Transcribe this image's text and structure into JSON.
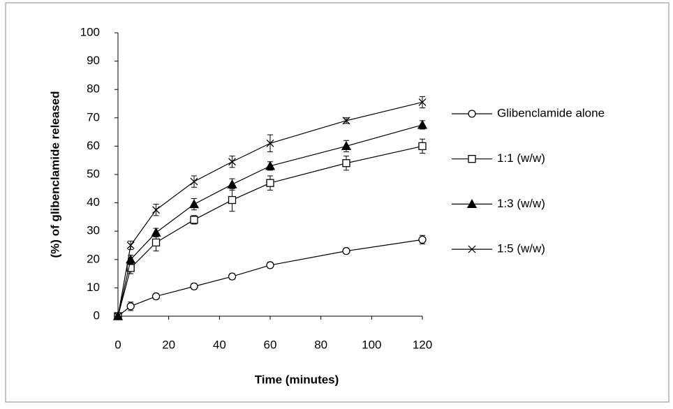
{
  "chart_data": {
    "type": "line",
    "x_label": "Time (minutes)",
    "y_label": "(%) of glibenclamide  released",
    "xlim": [
      0,
      120
    ],
    "xticks": [
      0,
      20,
      40,
      60,
      80,
      100,
      120
    ],
    "ylim": [
      0,
      100
    ],
    "yticks": [
      0,
      10,
      20,
      30,
      40,
      50,
      60,
      70,
      80,
      90,
      100
    ],
    "x": [
      0,
      5,
      15,
      30,
      45,
      60,
      90,
      120
    ],
    "series": [
      {
        "name": "Glibenclamide alone",
        "color": "#000000",
        "marker": "circle",
        "values": [
          0,
          3.5,
          7,
          10.5,
          14,
          18,
          23,
          27
        ],
        "errors": [
          0,
          1.5,
          1,
          1,
          1,
          1,
          1,
          1.5
        ]
      },
      {
        "name": "1:1 (w/w)",
        "color": "#000000",
        "marker": "square",
        "values": [
          0,
          17,
          26,
          34,
          41,
          47,
          54,
          60
        ],
        "errors": [
          0,
          2,
          3,
          1.5,
          4,
          2.5,
          2.5,
          2.5
        ]
      },
      {
        "name": "1:3 (w/w)",
        "color": "#000000",
        "marker": "triangle",
        "values": [
          0,
          20,
          29.5,
          39.5,
          46.5,
          53,
          60,
          67.5
        ],
        "errors": [
          0,
          1.5,
          1.5,
          2,
          2,
          1.5,
          2,
          1.5
        ]
      },
      {
        "name": "1:5 (w/w)",
        "color": "#000000",
        "marker": "x",
        "values": [
          0,
          25,
          37.5,
          47.5,
          54.5,
          61,
          69,
          75.5
        ],
        "errors": [
          0,
          1.5,
          2,
          2,
          2,
          3,
          1,
          2
        ]
      }
    ],
    "legend": "right"
  }
}
